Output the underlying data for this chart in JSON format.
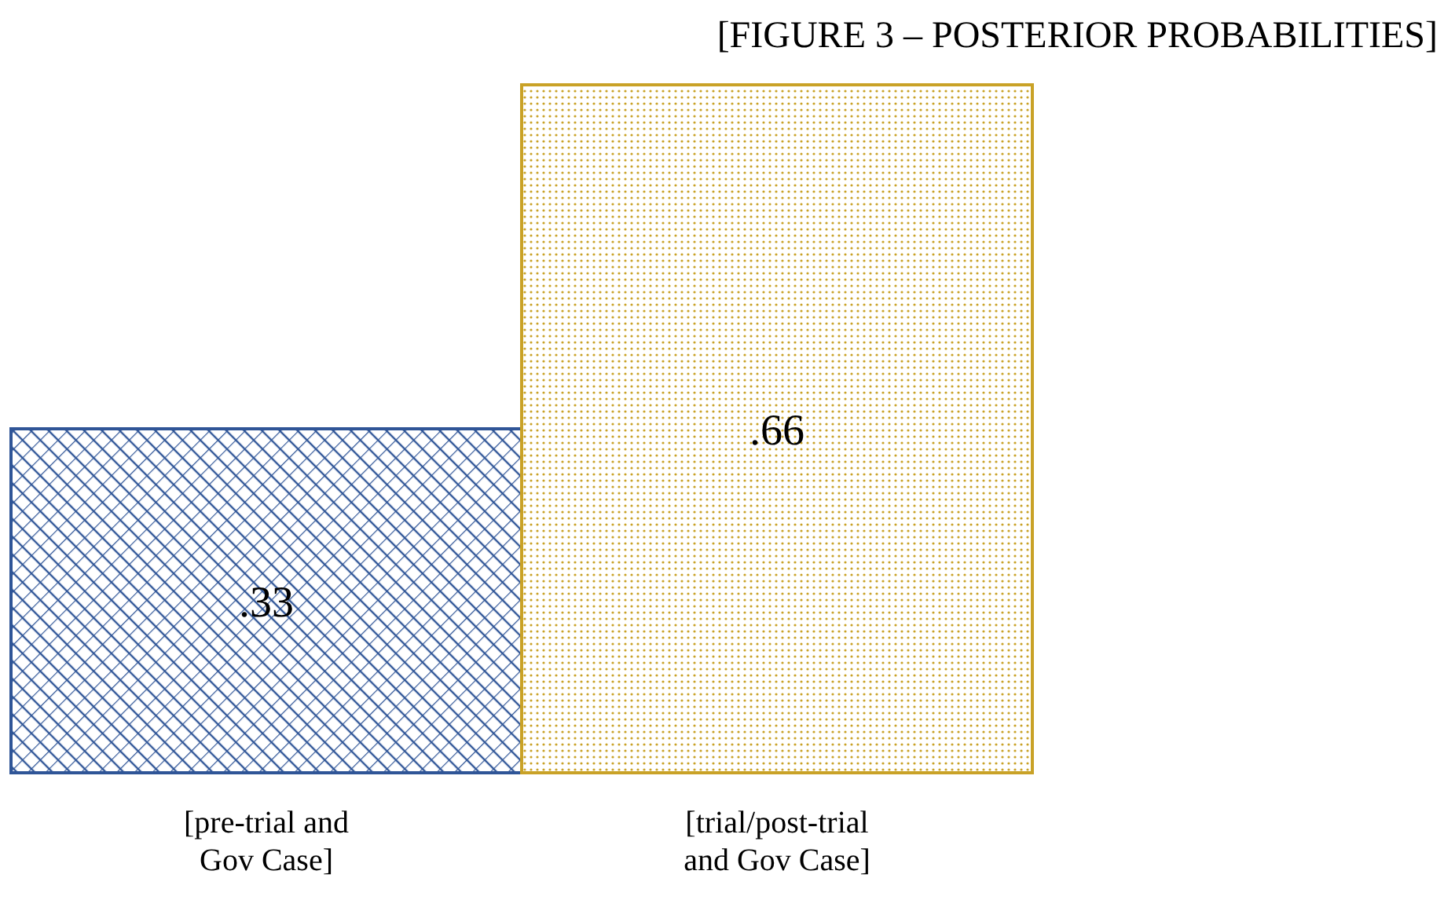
{
  "chart_data": {
    "type": "bar",
    "title": "[FIGURE 3 – POSTERIOR PROBABILITIES]",
    "categories": [
      "[pre-trial and Gov Case]",
      "[trial/post-trial and Gov Case]"
    ],
    "values": [
      0.33,
      0.66
    ],
    "colors": [
      "#2f5597",
      "#c9a227"
    ],
    "value_labels": [
      ".33",
      ".66"
    ]
  }
}
